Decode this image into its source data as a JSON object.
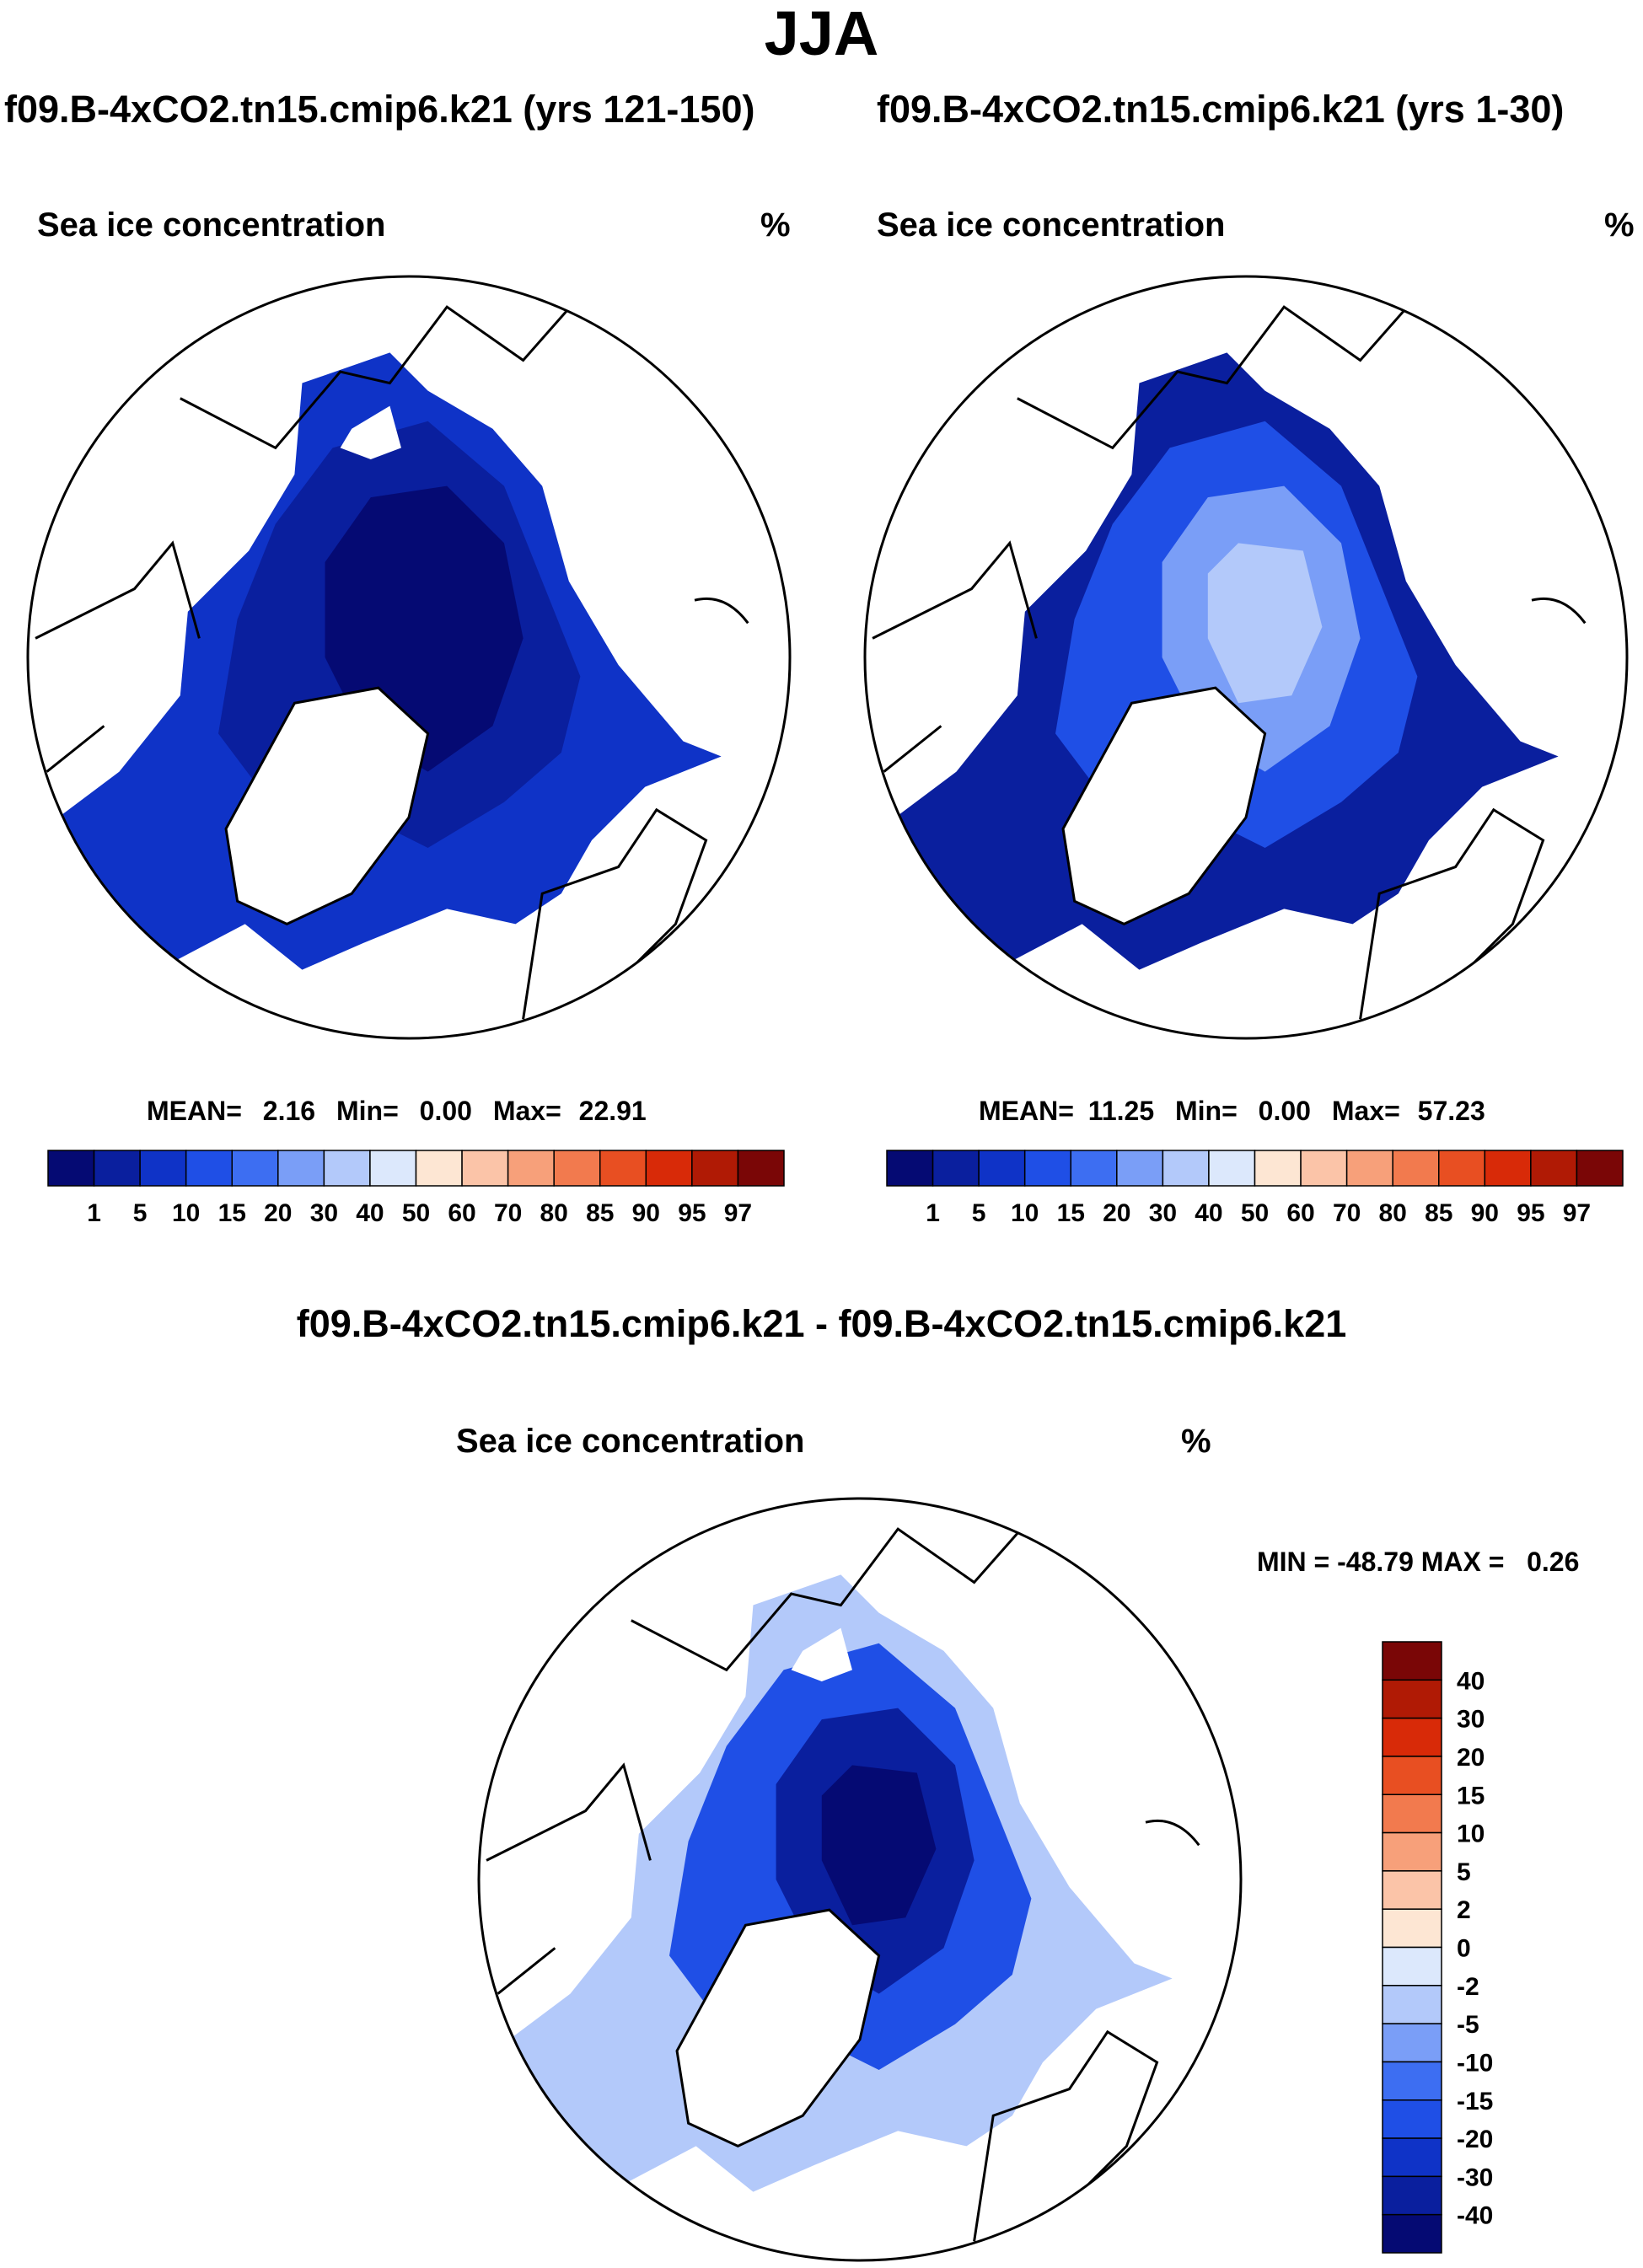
{
  "page_title": "JJA",
  "chart_data": [
    {
      "type": "heatmap",
      "projection": "north-polar-stereographic",
      "title": "f09.B-4xCO2.tn15.cmip6.k21 (yrs 121-150)",
      "variable": "Sea ice concentration",
      "units": "%",
      "stats": {
        "mean_label": "MEAN=",
        "mean": "2.16",
        "min_label": "Min=",
        "min": "0.00",
        "max_label": "Max=",
        "max": "22.91"
      },
      "levels": [
        "1",
        "5",
        "10",
        "15",
        "20",
        "30",
        "40",
        "50",
        "60",
        "70",
        "80",
        "85",
        "90",
        "95",
        "97"
      ],
      "colors": [
        "#050a73",
        "#0a1f9e",
        "#0f33c7",
        "#1f4fe6",
        "#3d6ef2",
        "#7a9ef7",
        "#b3c9fa",
        "#dce8fc",
        "#fde6d3",
        "#fbc4a8",
        "#f7a07a",
        "#f27a4e",
        "#e84f22",
        "#d82a08",
        "#b01a05",
        "#7a0606"
      ],
      "colorbar": "horizontal"
    },
    {
      "type": "heatmap",
      "projection": "north-polar-stereographic",
      "title": "f09.B-4xCO2.tn15.cmip6.k21 (yrs 1-30)",
      "variable": "Sea ice concentration",
      "units": "%",
      "stats": {
        "mean_label": "MEAN=",
        "mean": "11.25",
        "min_label": "Min=",
        "min": "0.00",
        "max_label": "Max=",
        "max": "57.23"
      },
      "levels": [
        "1",
        "5",
        "10",
        "15",
        "20",
        "30",
        "40",
        "50",
        "60",
        "70",
        "80",
        "85",
        "90",
        "95",
        "97"
      ],
      "colors": [
        "#050a73",
        "#0a1f9e",
        "#0f33c7",
        "#1f4fe6",
        "#3d6ef2",
        "#7a9ef7",
        "#b3c9fa",
        "#dce8fc",
        "#fde6d3",
        "#fbc4a8",
        "#f7a07a",
        "#f27a4e",
        "#e84f22",
        "#d82a08",
        "#b01a05",
        "#7a0606"
      ],
      "colorbar": "horizontal"
    },
    {
      "type": "heatmap",
      "projection": "north-polar-stereographic",
      "title": "f09.B-4xCO2.tn15.cmip6.k21 - f09.B-4xCO2.tn15.cmip6.k21",
      "variable": "Sea ice concentration",
      "units": "%",
      "stats": {
        "text": "MIN = -48.79 MAX =   0.26",
        "min": -48.79,
        "max": 0.26
      },
      "levels": [
        "-40",
        "-30",
        "-20",
        "-15",
        "-10",
        "-5",
        "-2",
        "0",
        "2",
        "5",
        "10",
        "15",
        "20",
        "30",
        "40"
      ],
      "colors": [
        "#050a73",
        "#0a1f9e",
        "#0f33c7",
        "#1f4fe6",
        "#3d6ef2",
        "#7a9ef7",
        "#b3c9fa",
        "#dce8fc",
        "#fde6d3",
        "#fbc4a8",
        "#f7a07a",
        "#f27a4e",
        "#e84f22",
        "#d82a08",
        "#b01a05",
        "#7a0606"
      ],
      "colorbar": "vertical"
    }
  ]
}
